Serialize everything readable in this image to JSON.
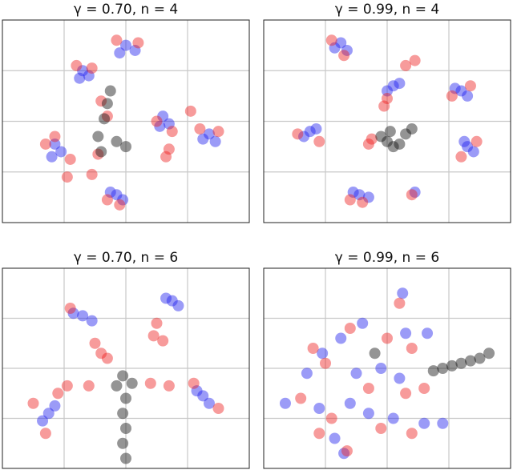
{
  "chart_data": [
    {
      "type": "scatter",
      "title": "γ = 0.70, n = 4",
      "xlim": [
        0,
        4
      ],
      "ylim": [
        0,
        4
      ],
      "xgrid": [
        1,
        2,
        3
      ],
      "ygrid": [
        1,
        2,
        3
      ],
      "series": [
        {
          "color": "#2222ee",
          "x": [
            2.0,
            2.15,
            1.9,
            1.3,
            1.4,
            1.25,
            2.6,
            2.7,
            2.55,
            3.35,
            3.45,
            3.25,
            0.85,
            0.95,
            0.8,
            1.85,
            1.95,
            1.75
          ],
          "y": [
            3.5,
            3.4,
            3.35,
            3.0,
            2.9,
            2.85,
            2.1,
            1.95,
            1.9,
            1.75,
            1.6,
            1.65,
            1.55,
            1.4,
            1.3,
            0.55,
            0.45,
            0.6
          ]
        },
        {
          "color": "#ee2222",
          "x": [
            2.2,
            1.85,
            1.2,
            1.45,
            2.5,
            2.75,
            2.7,
            2.65,
            3.05,
            3.2,
            3.5,
            0.7,
            0.85,
            1.05,
            1.1,
            1.55,
            1.45,
            1.9,
            1.7,
            1.6,
            1.7
          ],
          "y": [
            3.55,
            3.6,
            3.1,
            3.05,
            2.0,
            1.8,
            1.45,
            1.3,
            2.2,
            1.85,
            1.8,
            1.55,
            1.7,
            0.9,
            1.25,
            1.35,
            0.95,
            0.35,
            0.45,
            2.4,
            2.1
          ]
        },
        {
          "color": "#111111",
          "x": [
            1.75,
            1.7,
            1.65,
            1.55,
            1.85,
            2.0,
            1.6
          ],
          "y": [
            2.6,
            2.35,
            2.05,
            1.7,
            1.6,
            1.5,
            1.4
          ]
        }
      ]
    },
    {
      "type": "scatter",
      "title": "γ = 0.99, n = 4",
      "xlim": [
        0,
        4
      ],
      "ylim": [
        0,
        4
      ],
      "xgrid": [
        1,
        2,
        3
      ],
      "ygrid": [
        1,
        2,
        3
      ],
      "series": [
        {
          "color": "#2222ee",
          "x": [
            1.25,
            1.35,
            1.15,
            2.1,
            2.0,
            2.2,
            3.2,
            3.3,
            3.1,
            0.75,
            0.65,
            0.85,
            3.3,
            3.4,
            3.25,
            1.55,
            1.7,
            1.45,
            2.45
          ],
          "y": [
            3.55,
            3.4,
            3.45,
            2.7,
            2.6,
            2.75,
            2.6,
            2.5,
            2.65,
            1.8,
            1.7,
            1.85,
            1.5,
            1.4,
            1.6,
            0.55,
            0.5,
            0.6,
            0.6
          ]
        },
        {
          "color": "#ee2222",
          "x": [
            1.1,
            1.3,
            2.3,
            2.45,
            2.0,
            1.95,
            3.05,
            3.35,
            0.55,
            0.9,
            1.7,
            1.75,
            3.2,
            3.45,
            1.4,
            1.6,
            2.4
          ],
          "y": [
            3.6,
            3.3,
            3.1,
            3.2,
            2.45,
            2.3,
            2.5,
            2.7,
            1.75,
            1.6,
            1.55,
            1.65,
            1.3,
            1.6,
            0.45,
            0.4,
            0.55
          ]
        },
        {
          "color": "#111111",
          "x": [
            1.9,
            2.0,
            2.1,
            2.2,
            2.3,
            2.05,
            2.4
          ],
          "y": [
            1.7,
            1.6,
            1.5,
            1.55,
            1.75,
            1.8,
            1.85
          ]
        }
      ]
    },
    {
      "type": "scatter",
      "title": "γ = 0.70, n = 6",
      "xlim": [
        0,
        4
      ],
      "ylim": [
        0,
        4
      ],
      "xgrid": [
        1,
        2,
        3
      ],
      "ygrid": [
        1,
        2,
        3
      ],
      "series": [
        {
          "color": "#2222ee",
          "x": [
            1.3,
            1.45,
            1.15,
            2.75,
            2.85,
            2.65,
            0.75,
            0.65,
            0.85,
            3.25,
            3.35,
            3.15
          ],
          "y": [
            3.05,
            2.95,
            3.1,
            3.35,
            3.25,
            3.4,
            1.1,
            0.95,
            1.25,
            1.45,
            1.3,
            1.55
          ]
        },
        {
          "color": "#ee2222",
          "x": [
            1.1,
            1.5,
            1.6,
            1.7,
            2.5,
            2.45,
            2.6,
            0.5,
            0.9,
            1.4,
            1.05,
            2.4,
            2.7,
            3.1,
            3.5,
            0.7
          ],
          "y": [
            3.2,
            2.5,
            2.3,
            2.2,
            2.9,
            2.65,
            2.55,
            1.3,
            1.5,
            1.65,
            1.65,
            1.7,
            1.65,
            1.7,
            1.2,
            0.7
          ]
        },
        {
          "color": "#111111",
          "x": [
            1.95,
            1.85,
            2.1,
            2.0,
            1.95,
            2.0,
            1.95,
            2.0
          ],
          "y": [
            1.85,
            1.65,
            1.7,
            1.4,
            1.1,
            0.8,
            0.5,
            0.2
          ]
        }
      ]
    },
    {
      "type": "scatter",
      "title": "γ = 0.99, n = 6",
      "xlim": [
        0,
        4
      ],
      "ylim": [
        0,
        4
      ],
      "xgrid": [
        1,
        2,
        3
      ],
      "ygrid": [
        1,
        2,
        3
      ],
      "series": [
        {
          "color": "#2222ee",
          "x": [
            2.25,
            1.6,
            2.3,
            2.65,
            1.25,
            0.95,
            0.7,
            1.5,
            1.9,
            2.2,
            0.35,
            0.9,
            1.4,
            1.7,
            2.1,
            2.6,
            2.9,
            1.15,
            1.3
          ],
          "y": [
            3.5,
            2.9,
            2.7,
            2.7,
            2.6,
            2.3,
            1.9,
            1.9,
            2.0,
            1.8,
            1.3,
            1.2,
            1.3,
            1.1,
            1.0,
            0.9,
            0.9,
            0.6,
            0.3
          ]
        },
        {
          "color": "#ee2222",
          "x": [
            2.2,
            1.4,
            2.0,
            2.4,
            1.0,
            0.8,
            1.7,
            2.3,
            2.6,
            0.6,
            1.1,
            1.9,
            1.35,
            2.4,
            0.9
          ],
          "y": [
            3.3,
            2.8,
            2.6,
            2.4,
            2.1,
            2.4,
            1.6,
            1.5,
            1.6,
            1.4,
            1.0,
            0.8,
            0.35,
            0.7,
            0.7
          ]
        },
        {
          "color": "#111111",
          "x": [
            2.75,
            2.9,
            3.05,
            3.2,
            3.35,
            3.5,
            3.65,
            1.8
          ],
          "y": [
            1.95,
            2.0,
            2.05,
            2.1,
            2.15,
            2.2,
            2.3,
            2.3
          ]
        }
      ]
    }
  ]
}
